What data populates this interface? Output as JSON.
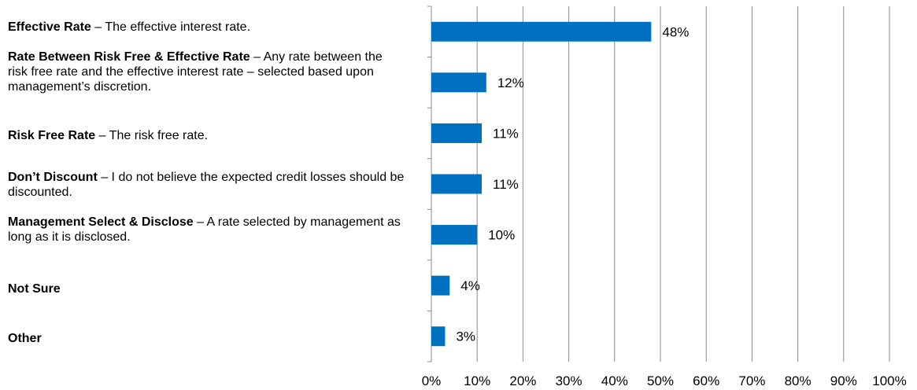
{
  "chart_data": {
    "type": "bar",
    "orientation": "horizontal",
    "categories": [
      {
        "name": "Effective Rate",
        "desc": " – The effective interest rate."
      },
      {
        "name": "Rate Between Risk Free & Effective Rate",
        "desc": " – Any rate between the risk free rate and the effective interest rate – selected based upon management’s discretion."
      },
      {
        "name": "Risk Free Rate",
        "desc": " – The risk free rate."
      },
      {
        "name": "Don’t Discount",
        "desc": " – I do not believe the expected credit losses should be discounted."
      },
      {
        "name": "Management Select & Disclose",
        "desc": " – A rate selected by management as long as it is disclosed."
      },
      {
        "name": "Not Sure",
        "desc": ""
      },
      {
        "name": "Other",
        "desc": ""
      }
    ],
    "values": [
      48,
      12,
      11,
      11,
      10,
      4,
      3
    ],
    "value_labels": [
      "48%",
      "12%",
      "11%",
      "11%",
      "10%",
      "4%",
      "3%"
    ],
    "xlim": [
      0,
      100
    ],
    "xticks": [
      "0%",
      "10%",
      "20%",
      "30%",
      "40%",
      "50%",
      "60%",
      "70%",
      "80%",
      "90%",
      "100%"
    ],
    "grid": true,
    "bar_color": "#0070C0",
    "grid_color": "#8C8C8C"
  }
}
